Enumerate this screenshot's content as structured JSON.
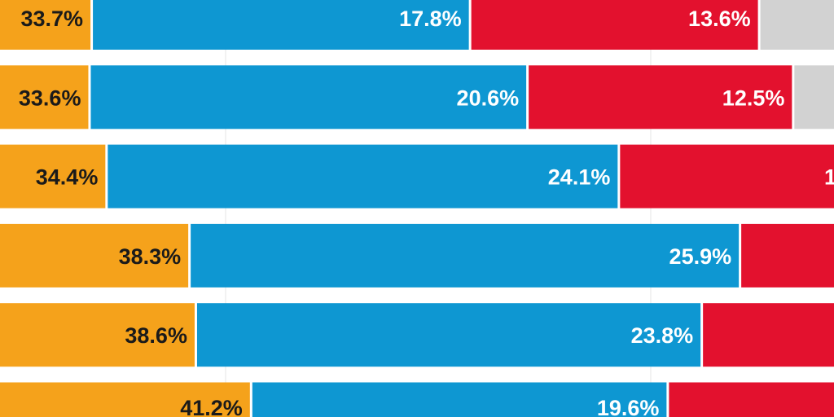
{
  "chart_data": {
    "type": "bar",
    "orientation": "horizontal",
    "stacked": true,
    "title": "",
    "xlabel": "",
    "ylabel": "",
    "xlim_visible": [
      29.4,
      68.6
    ],
    "gridlines_x": [
      40,
      60
    ],
    "grid": true,
    "series": [
      {
        "name": "orange",
        "color": "#f5a21b",
        "label_color": "#1a1a1a",
        "values": [
          33.7,
          33.6,
          34.4,
          38.3,
          38.6,
          41.2
        ],
        "labels": [
          "33.7%",
          "33.6%",
          "34.4%",
          "38.3%",
          "38.6%",
          "41.2%"
        ]
      },
      {
        "name": "blue",
        "color": "#0e97d2",
        "label_color": "#ffffff",
        "values": [
          17.8,
          20.6,
          24.1,
          25.9,
          23.8,
          19.6
        ],
        "labels": [
          "17.8%",
          "20.6%",
          "24.1%",
          "25.9%",
          "23.8%",
          "19.6%"
        ]
      },
      {
        "name": "red",
        "color": "#e3112e",
        "label_color": "#ffffff",
        "values": [
          13.6,
          12.5,
          null,
          null,
          null,
          null
        ],
        "labels": [
          "13.6%",
          "12.5%",
          "1",
          "",
          "",
          ""
        ]
      },
      {
        "name": "gray",
        "color": "#d2d2d2",
        "label_color": "#ffffff",
        "values": [
          null,
          null,
          null,
          null,
          null,
          null
        ],
        "labels": [
          "",
          "",
          "",
          "",
          "",
          ""
        ]
      }
    ]
  }
}
